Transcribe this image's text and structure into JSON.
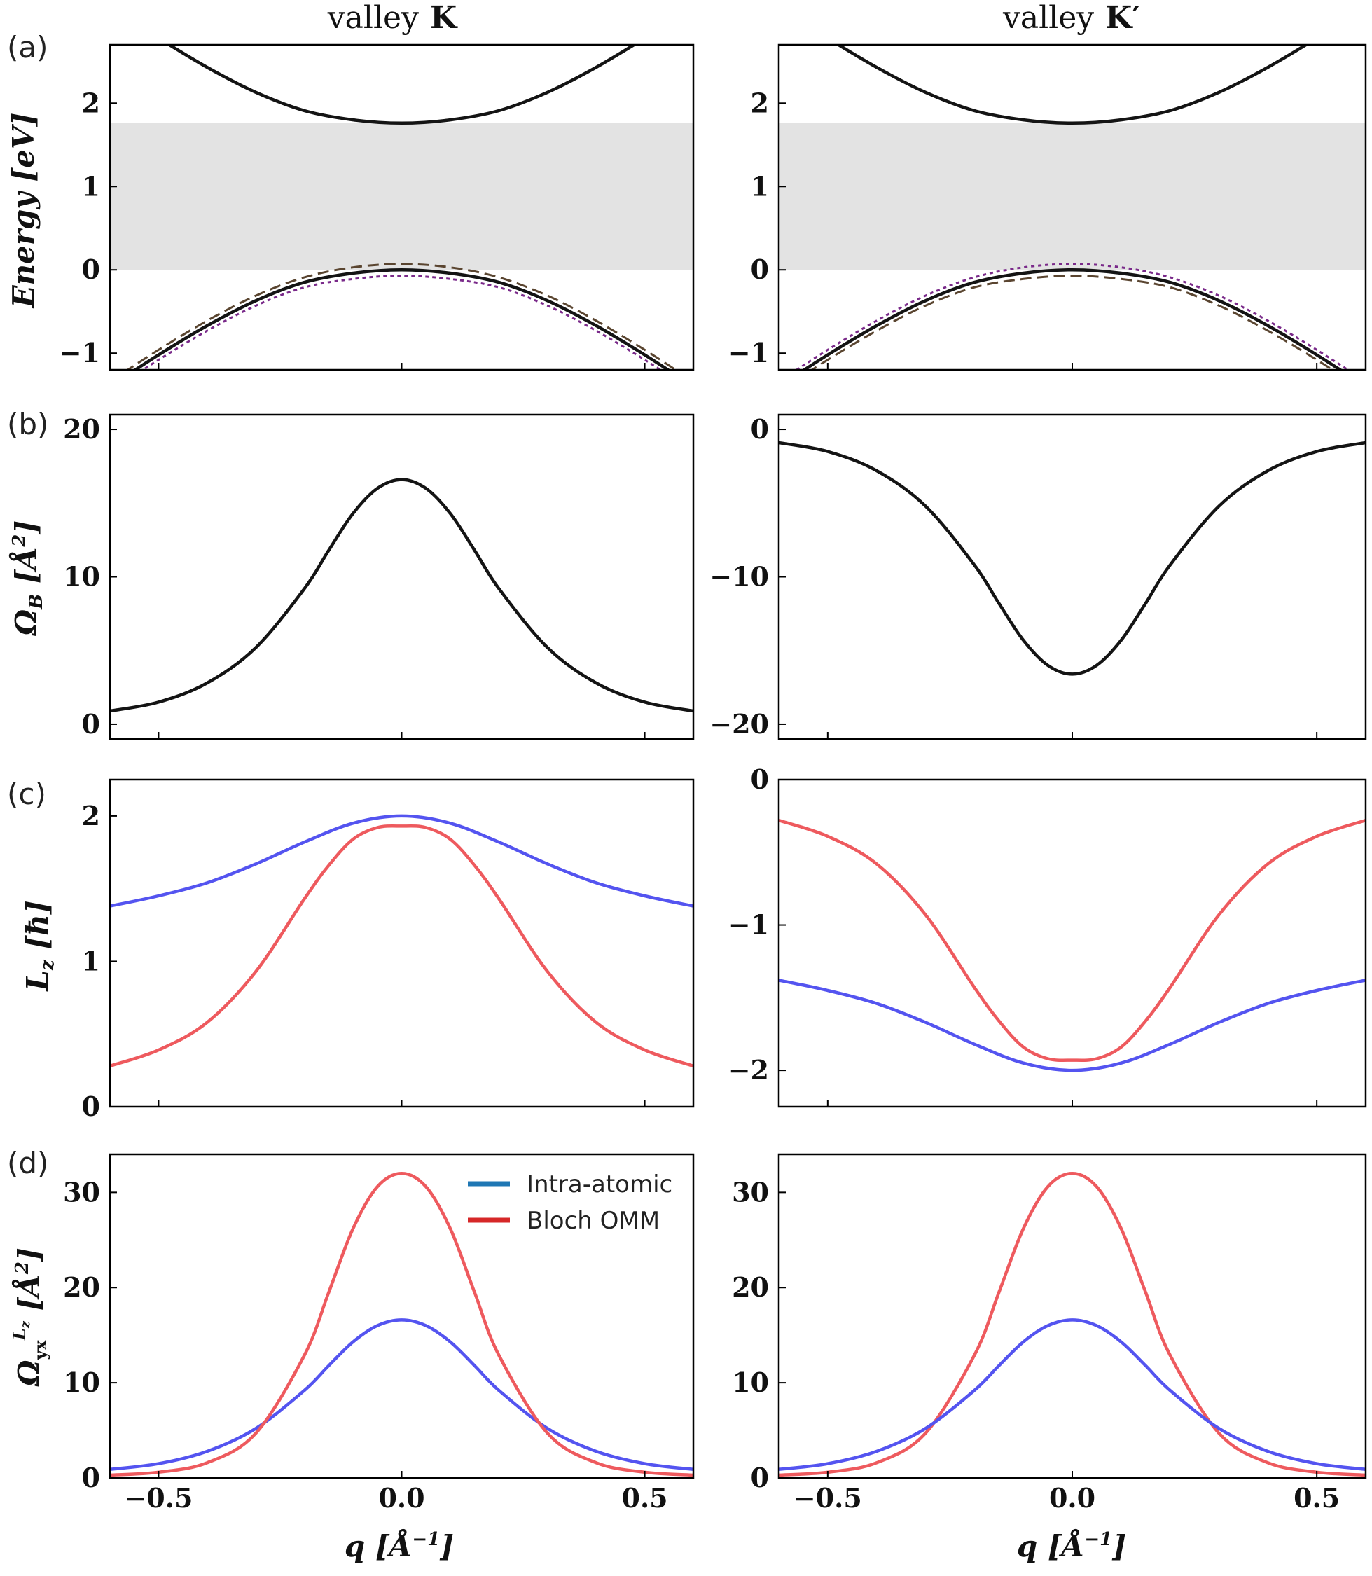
{
  "columns": [
    {
      "title_prefix": "valley",
      "title_symbol": "K"
    },
    {
      "title_prefix": "valley",
      "title_symbol": "K′"
    }
  ],
  "panel_letters": [
    "(a)",
    "(b)",
    "(c)",
    "(d)"
  ],
  "colors": {
    "black": "#141414",
    "blue": "#5454f0",
    "red": "#ee5a5e",
    "brown_dashed": "#5a4530",
    "purple_dotted": "#7a2a8a",
    "gap_fill": "#e3e3e3",
    "legend_blue": "#1f77b4",
    "legend_red": "#d62728"
  },
  "legend": {
    "panel": "d-left",
    "entries": [
      {
        "label": "Intra-atomic",
        "color": "#1f77b4"
      },
      {
        "label": "Bloch OMM",
        "color": "#d62728"
      }
    ]
  },
  "chart_data": [
    {
      "id": "a-left",
      "type": "line",
      "row": "a",
      "col": 0,
      "xlim": [
        -0.6,
        0.6
      ],
      "ylim": [
        -1.2,
        2.7
      ],
      "yticks": [
        "2",
        "1",
        "0",
        "−1"
      ],
      "ytick_values": [
        2,
        1,
        0,
        -1
      ],
      "xticks": [
        -0.5,
        0.0,
        0.5
      ],
      "show_xtick_labels": false,
      "ylabel": "Energy [eV]",
      "shaded_band": {
        "y0": 0,
        "y1": 1.76
      },
      "series": [
        {
          "style": "solid",
          "color": "black",
          "x": [
            -0.6,
            -0.5,
            -0.4,
            -0.3,
            -0.2,
            -0.1,
            0.0,
            0.1,
            0.2,
            0.3,
            0.4,
            0.5,
            0.6
          ],
          "y": [
            3.15,
            2.78,
            2.43,
            2.13,
            1.91,
            1.8,
            1.76,
            1.8,
            1.91,
            2.13,
            2.43,
            2.78,
            3.15
          ]
        },
        {
          "style": "solid",
          "color": "black",
          "x": [
            -0.6,
            -0.5,
            -0.4,
            -0.3,
            -0.2,
            -0.1,
            0.0,
            0.1,
            0.2,
            0.3,
            0.4,
            0.5,
            0.6
          ],
          "y": [
            -1.4,
            -1.02,
            -0.67,
            -0.37,
            -0.15,
            -0.04,
            0.0,
            -0.04,
            -0.15,
            -0.37,
            -0.67,
            -1.02,
            -1.4
          ]
        },
        {
          "style": "dashed",
          "color": "brown_dashed",
          "x": [
            -0.6,
            -0.5,
            -0.4,
            -0.3,
            -0.2,
            -0.1,
            0.0,
            0.1,
            0.2,
            0.3,
            0.4,
            0.5,
            0.6
          ],
          "y": [
            -1.34,
            -0.96,
            -0.61,
            -0.31,
            -0.09,
            0.03,
            0.07,
            0.03,
            -0.09,
            -0.31,
            -0.61,
            -0.96,
            -1.34
          ]
        },
        {
          "style": "dotted",
          "color": "purple_dotted",
          "x": [
            -0.6,
            -0.5,
            -0.4,
            -0.3,
            -0.2,
            -0.1,
            0.0,
            0.1,
            0.2,
            0.3,
            0.4,
            0.5,
            0.6
          ],
          "y": [
            -1.46,
            -1.08,
            -0.73,
            -0.43,
            -0.21,
            -0.11,
            -0.07,
            -0.11,
            -0.21,
            -0.43,
            -0.73,
            -1.08,
            -1.46
          ]
        }
      ]
    },
    {
      "id": "a-right",
      "type": "line",
      "row": "a",
      "col": 1,
      "xlim": [
        -0.6,
        0.6
      ],
      "ylim": [
        -1.2,
        2.7
      ],
      "yticks": [
        "2",
        "1",
        "0",
        "−1"
      ],
      "ytick_values": [
        2,
        1,
        0,
        -1
      ],
      "xticks": [
        -0.5,
        0.0,
        0.5
      ],
      "show_xtick_labels": false,
      "ylabel": "",
      "shaded_band": {
        "y0": 0,
        "y1": 1.76
      },
      "series": [
        {
          "style": "solid",
          "color": "black",
          "x": [
            -0.6,
            -0.5,
            -0.4,
            -0.3,
            -0.2,
            -0.1,
            0.0,
            0.1,
            0.2,
            0.3,
            0.4,
            0.5,
            0.6
          ],
          "y": [
            3.15,
            2.78,
            2.43,
            2.13,
            1.91,
            1.8,
            1.76,
            1.8,
            1.91,
            2.13,
            2.43,
            2.78,
            3.15
          ]
        },
        {
          "style": "solid",
          "color": "black",
          "x": [
            -0.6,
            -0.5,
            -0.4,
            -0.3,
            -0.2,
            -0.1,
            0.0,
            0.1,
            0.2,
            0.3,
            0.4,
            0.5,
            0.6
          ],
          "y": [
            -1.4,
            -1.02,
            -0.67,
            -0.37,
            -0.15,
            -0.04,
            0.0,
            -0.04,
            -0.15,
            -0.37,
            -0.67,
            -1.02,
            -1.4
          ]
        },
        {
          "style": "dotted",
          "color": "purple_dotted",
          "x": [
            -0.6,
            -0.5,
            -0.4,
            -0.3,
            -0.2,
            -0.1,
            0.0,
            0.1,
            0.2,
            0.3,
            0.4,
            0.5,
            0.6
          ],
          "y": [
            -1.34,
            -0.96,
            -0.61,
            -0.31,
            -0.09,
            0.03,
            0.07,
            0.03,
            -0.09,
            -0.31,
            -0.61,
            -0.96,
            -1.34
          ]
        },
        {
          "style": "dashed",
          "color": "brown_dashed",
          "x": [
            -0.6,
            -0.5,
            -0.4,
            -0.3,
            -0.2,
            -0.1,
            0.0,
            0.1,
            0.2,
            0.3,
            0.4,
            0.5,
            0.6
          ],
          "y": [
            -1.46,
            -1.08,
            -0.73,
            -0.43,
            -0.21,
            -0.11,
            -0.07,
            -0.11,
            -0.21,
            -0.43,
            -0.73,
            -1.08,
            -1.46
          ]
        }
      ]
    },
    {
      "id": "b-left",
      "type": "line",
      "row": "b",
      "col": 0,
      "xlim": [
        -0.6,
        0.6
      ],
      "ylim": [
        -1,
        21
      ],
      "yticks": [
        "20",
        "10",
        "0"
      ],
      "ytick_values": [
        20,
        10,
        0
      ],
      "xticks": [
        -0.5,
        0.0,
        0.5
      ],
      "show_xtick_labels": false,
      "ylabel": "Ω_B [Å²]",
      "series": [
        {
          "style": "solid",
          "color": "black",
          "x": [
            -0.6,
            -0.5,
            -0.4,
            -0.3,
            -0.2,
            -0.15,
            -0.1,
            -0.05,
            0.0,
            0.05,
            0.1,
            0.15,
            0.2,
            0.3,
            0.4,
            0.5,
            0.6
          ],
          "y": [
            0.9,
            1.5,
            2.8,
            5.2,
            9.2,
            11.8,
            14.3,
            16.0,
            16.6,
            16.0,
            14.3,
            11.8,
            9.2,
            5.2,
            2.8,
            1.5,
            0.9
          ]
        }
      ]
    },
    {
      "id": "b-right",
      "type": "line",
      "row": "b",
      "col": 1,
      "xlim": [
        -0.6,
        0.6
      ],
      "ylim": [
        -21,
        1
      ],
      "yticks": [
        "0",
        "−10",
        "−20"
      ],
      "ytick_values": [
        0,
        -10,
        -20
      ],
      "xticks": [
        -0.5,
        0.0,
        0.5
      ],
      "show_xtick_labels": false,
      "ylabel": "",
      "series": [
        {
          "style": "solid",
          "color": "black",
          "x": [
            -0.6,
            -0.5,
            -0.4,
            -0.3,
            -0.2,
            -0.15,
            -0.1,
            -0.05,
            0.0,
            0.05,
            0.1,
            0.15,
            0.2,
            0.3,
            0.4,
            0.5,
            0.6
          ],
          "y": [
            -0.9,
            -1.5,
            -2.8,
            -5.2,
            -9.2,
            -11.8,
            -14.3,
            -16.0,
            -16.6,
            -16.0,
            -14.3,
            -11.8,
            -9.2,
            -5.2,
            -2.8,
            -1.5,
            -0.9
          ]
        }
      ]
    },
    {
      "id": "c-left",
      "type": "line",
      "row": "c",
      "col": 0,
      "xlim": [
        -0.6,
        0.6
      ],
      "ylim": [
        0,
        2.25
      ],
      "yticks": [
        "2",
        "1",
        "0"
      ],
      "ytick_values": [
        2,
        1,
        0
      ],
      "xticks": [
        -0.5,
        0.0,
        0.5
      ],
      "show_xtick_labels": false,
      "ylabel": "L_z [ħ]",
      "series": [
        {
          "style": "solid",
          "color": "blue",
          "x": [
            -0.6,
            -0.5,
            -0.4,
            -0.3,
            -0.2,
            -0.1,
            0.0,
            0.1,
            0.2,
            0.3,
            0.4,
            0.5,
            0.6
          ],
          "y": [
            1.38,
            1.45,
            1.54,
            1.67,
            1.82,
            1.95,
            2.0,
            1.95,
            1.82,
            1.67,
            1.54,
            1.45,
            1.38
          ]
        },
        {
          "style": "solid",
          "color": "red",
          "x": [
            -0.6,
            -0.5,
            -0.4,
            -0.3,
            -0.2,
            -0.15,
            -0.1,
            -0.05,
            0.0,
            0.05,
            0.1,
            0.15,
            0.2,
            0.3,
            0.4,
            0.5,
            0.6
          ],
          "y": [
            0.28,
            0.39,
            0.58,
            0.93,
            1.43,
            1.66,
            1.84,
            1.92,
            1.93,
            1.92,
            1.84,
            1.66,
            1.43,
            0.93,
            0.58,
            0.39,
            0.28
          ]
        }
      ]
    },
    {
      "id": "c-right",
      "type": "line",
      "row": "c",
      "col": 1,
      "xlim": [
        -0.6,
        0.6
      ],
      "ylim": [
        -2.25,
        0
      ],
      "yticks": [
        "0",
        "−1",
        "−2"
      ],
      "ytick_values": [
        0,
        -1,
        -2
      ],
      "xticks": [
        -0.5,
        0.0,
        0.5
      ],
      "show_xtick_labels": false,
      "ylabel": "",
      "series": [
        {
          "style": "solid",
          "color": "red",
          "x": [
            -0.6,
            -0.5,
            -0.4,
            -0.3,
            -0.2,
            -0.15,
            -0.1,
            -0.05,
            0.0,
            0.05,
            0.1,
            0.15,
            0.2,
            0.3,
            0.4,
            0.5,
            0.6
          ],
          "y": [
            -0.28,
            -0.39,
            -0.58,
            -0.93,
            -1.43,
            -1.66,
            -1.84,
            -1.92,
            -1.93,
            -1.92,
            -1.84,
            -1.66,
            -1.43,
            -0.93,
            -0.58,
            -0.39,
            -0.28
          ]
        },
        {
          "style": "solid",
          "color": "blue",
          "x": [
            -0.6,
            -0.5,
            -0.4,
            -0.3,
            -0.2,
            -0.1,
            0.0,
            0.1,
            0.2,
            0.3,
            0.4,
            0.5,
            0.6
          ],
          "y": [
            -1.38,
            -1.45,
            -1.54,
            -1.67,
            -1.82,
            -1.95,
            -2.0,
            -1.95,
            -1.82,
            -1.67,
            -1.54,
            -1.45,
            -1.38
          ]
        }
      ]
    },
    {
      "id": "d-left",
      "type": "line",
      "row": "d",
      "col": 0,
      "xlim": [
        -0.6,
        0.6
      ],
      "ylim": [
        0,
        34
      ],
      "yticks": [
        "30",
        "20",
        "10",
        "0"
      ],
      "ytick_values": [
        30,
        20,
        10,
        0
      ],
      "xticks": [
        -0.5,
        0.0,
        0.5
      ],
      "show_xtick_labels": true,
      "xtick_labels": [
        "−0.5",
        "0.0",
        "0.5"
      ],
      "ylabel": "Ω_yx^{L_z} [Å²]",
      "xlabel": "q [Å⁻¹]",
      "series": [
        {
          "style": "solid",
          "color": "blue",
          "x": [
            -0.6,
            -0.5,
            -0.4,
            -0.3,
            -0.2,
            -0.15,
            -0.1,
            -0.05,
            0.0,
            0.05,
            0.1,
            0.15,
            0.2,
            0.3,
            0.4,
            0.5,
            0.6
          ],
          "y": [
            0.9,
            1.5,
            2.8,
            5.2,
            9.2,
            11.8,
            14.3,
            16.0,
            16.6,
            16.0,
            14.3,
            11.8,
            9.2,
            5.2,
            2.8,
            1.5,
            0.9
          ]
        },
        {
          "style": "solid",
          "color": "red",
          "x": [
            -0.6,
            -0.5,
            -0.4,
            -0.3,
            -0.2,
            -0.15,
            -0.1,
            -0.05,
            0.0,
            0.05,
            0.1,
            0.15,
            0.2,
            0.3,
            0.4,
            0.5,
            0.6
          ],
          "y": [
            0.3,
            0.6,
            1.6,
            4.7,
            12.9,
            19.5,
            26.2,
            30.6,
            32.0,
            30.6,
            26.2,
            19.5,
            12.9,
            4.7,
            1.6,
            0.6,
            0.3
          ]
        }
      ]
    },
    {
      "id": "d-right",
      "type": "line",
      "row": "d",
      "col": 1,
      "xlim": [
        -0.6,
        0.6
      ],
      "ylim": [
        0,
        34
      ],
      "yticks": [
        "30",
        "20",
        "10",
        "0"
      ],
      "ytick_values": [
        30,
        20,
        10,
        0
      ],
      "xticks": [
        -0.5,
        0.0,
        0.5
      ],
      "show_xtick_labels": true,
      "xtick_labels": [
        "−0.5",
        "0.0",
        "0.5"
      ],
      "ylabel": "",
      "xlabel": "q [Å⁻¹]",
      "series": [
        {
          "style": "solid",
          "color": "red",
          "x": [
            -0.6,
            -0.5,
            -0.4,
            -0.3,
            -0.2,
            -0.15,
            -0.1,
            -0.05,
            0.0,
            0.05,
            0.1,
            0.15,
            0.2,
            0.3,
            0.4,
            0.5,
            0.6
          ],
          "y": [
            0.3,
            0.6,
            1.6,
            4.7,
            12.9,
            19.5,
            26.2,
            30.6,
            32.0,
            30.6,
            26.2,
            19.5,
            12.9,
            4.7,
            1.6,
            0.6,
            0.3
          ]
        },
        {
          "style": "solid",
          "color": "blue",
          "x": [
            -0.6,
            -0.5,
            -0.4,
            -0.3,
            -0.2,
            -0.15,
            -0.1,
            -0.05,
            0.0,
            0.05,
            0.1,
            0.15,
            0.2,
            0.3,
            0.4,
            0.5,
            0.6
          ],
          "y": [
            0.9,
            1.5,
            2.8,
            5.2,
            9.2,
            11.8,
            14.3,
            16.0,
            16.6,
            16.0,
            14.3,
            11.8,
            9.2,
            5.2,
            2.8,
            1.5,
            0.9
          ]
        }
      ]
    }
  ]
}
